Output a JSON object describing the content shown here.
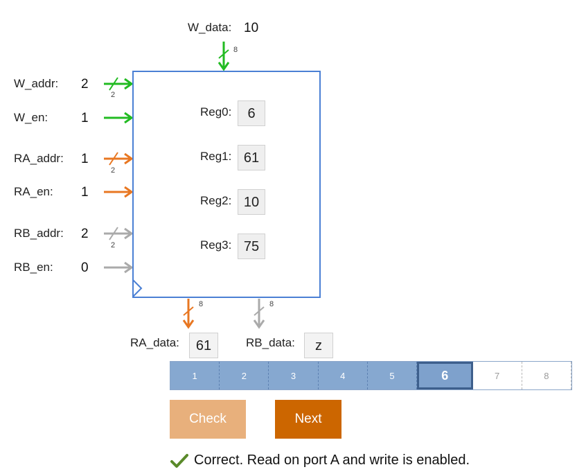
{
  "inputs": {
    "w_data": {
      "label": "W_data:",
      "value": "10",
      "width": "8"
    },
    "w_addr": {
      "label": "W_addr:",
      "value": "2",
      "width": "2"
    },
    "w_en": {
      "label": "W_en:",
      "value": "1"
    },
    "ra_addr": {
      "label": "RA_addr:",
      "value": "1",
      "width": "2"
    },
    "ra_en": {
      "label": "RA_en:",
      "value": "1"
    },
    "rb_addr": {
      "label": "RB_addr:",
      "value": "2",
      "width": "2"
    },
    "rb_en": {
      "label": "RB_en:",
      "value": "0"
    }
  },
  "registers": [
    {
      "label": "Reg0:",
      "value": "6"
    },
    {
      "label": "Reg1:",
      "value": "61"
    },
    {
      "label": "Reg2:",
      "value": "10"
    },
    {
      "label": "Reg3:",
      "value": "75"
    }
  ],
  "outputs": {
    "ra_data": {
      "label": "RA_data:",
      "value": "61",
      "width": "8"
    },
    "rb_data": {
      "label": "RB_data:",
      "value": "z",
      "width": "8"
    }
  },
  "progress": {
    "steps": [
      "1",
      "2",
      "3",
      "4",
      "5",
      "6",
      "7",
      "8"
    ],
    "current": 6
  },
  "buttons": {
    "check": "Check",
    "next": "Next"
  },
  "feedback": {
    "text": "Correct. Read on port A and write is enabled."
  },
  "colors": {
    "green": "#22bb22",
    "orange": "#e87722",
    "gray": "#aaaaaa",
    "blue": "#4a7fd4",
    "check_mark": "#5a8a2a"
  }
}
